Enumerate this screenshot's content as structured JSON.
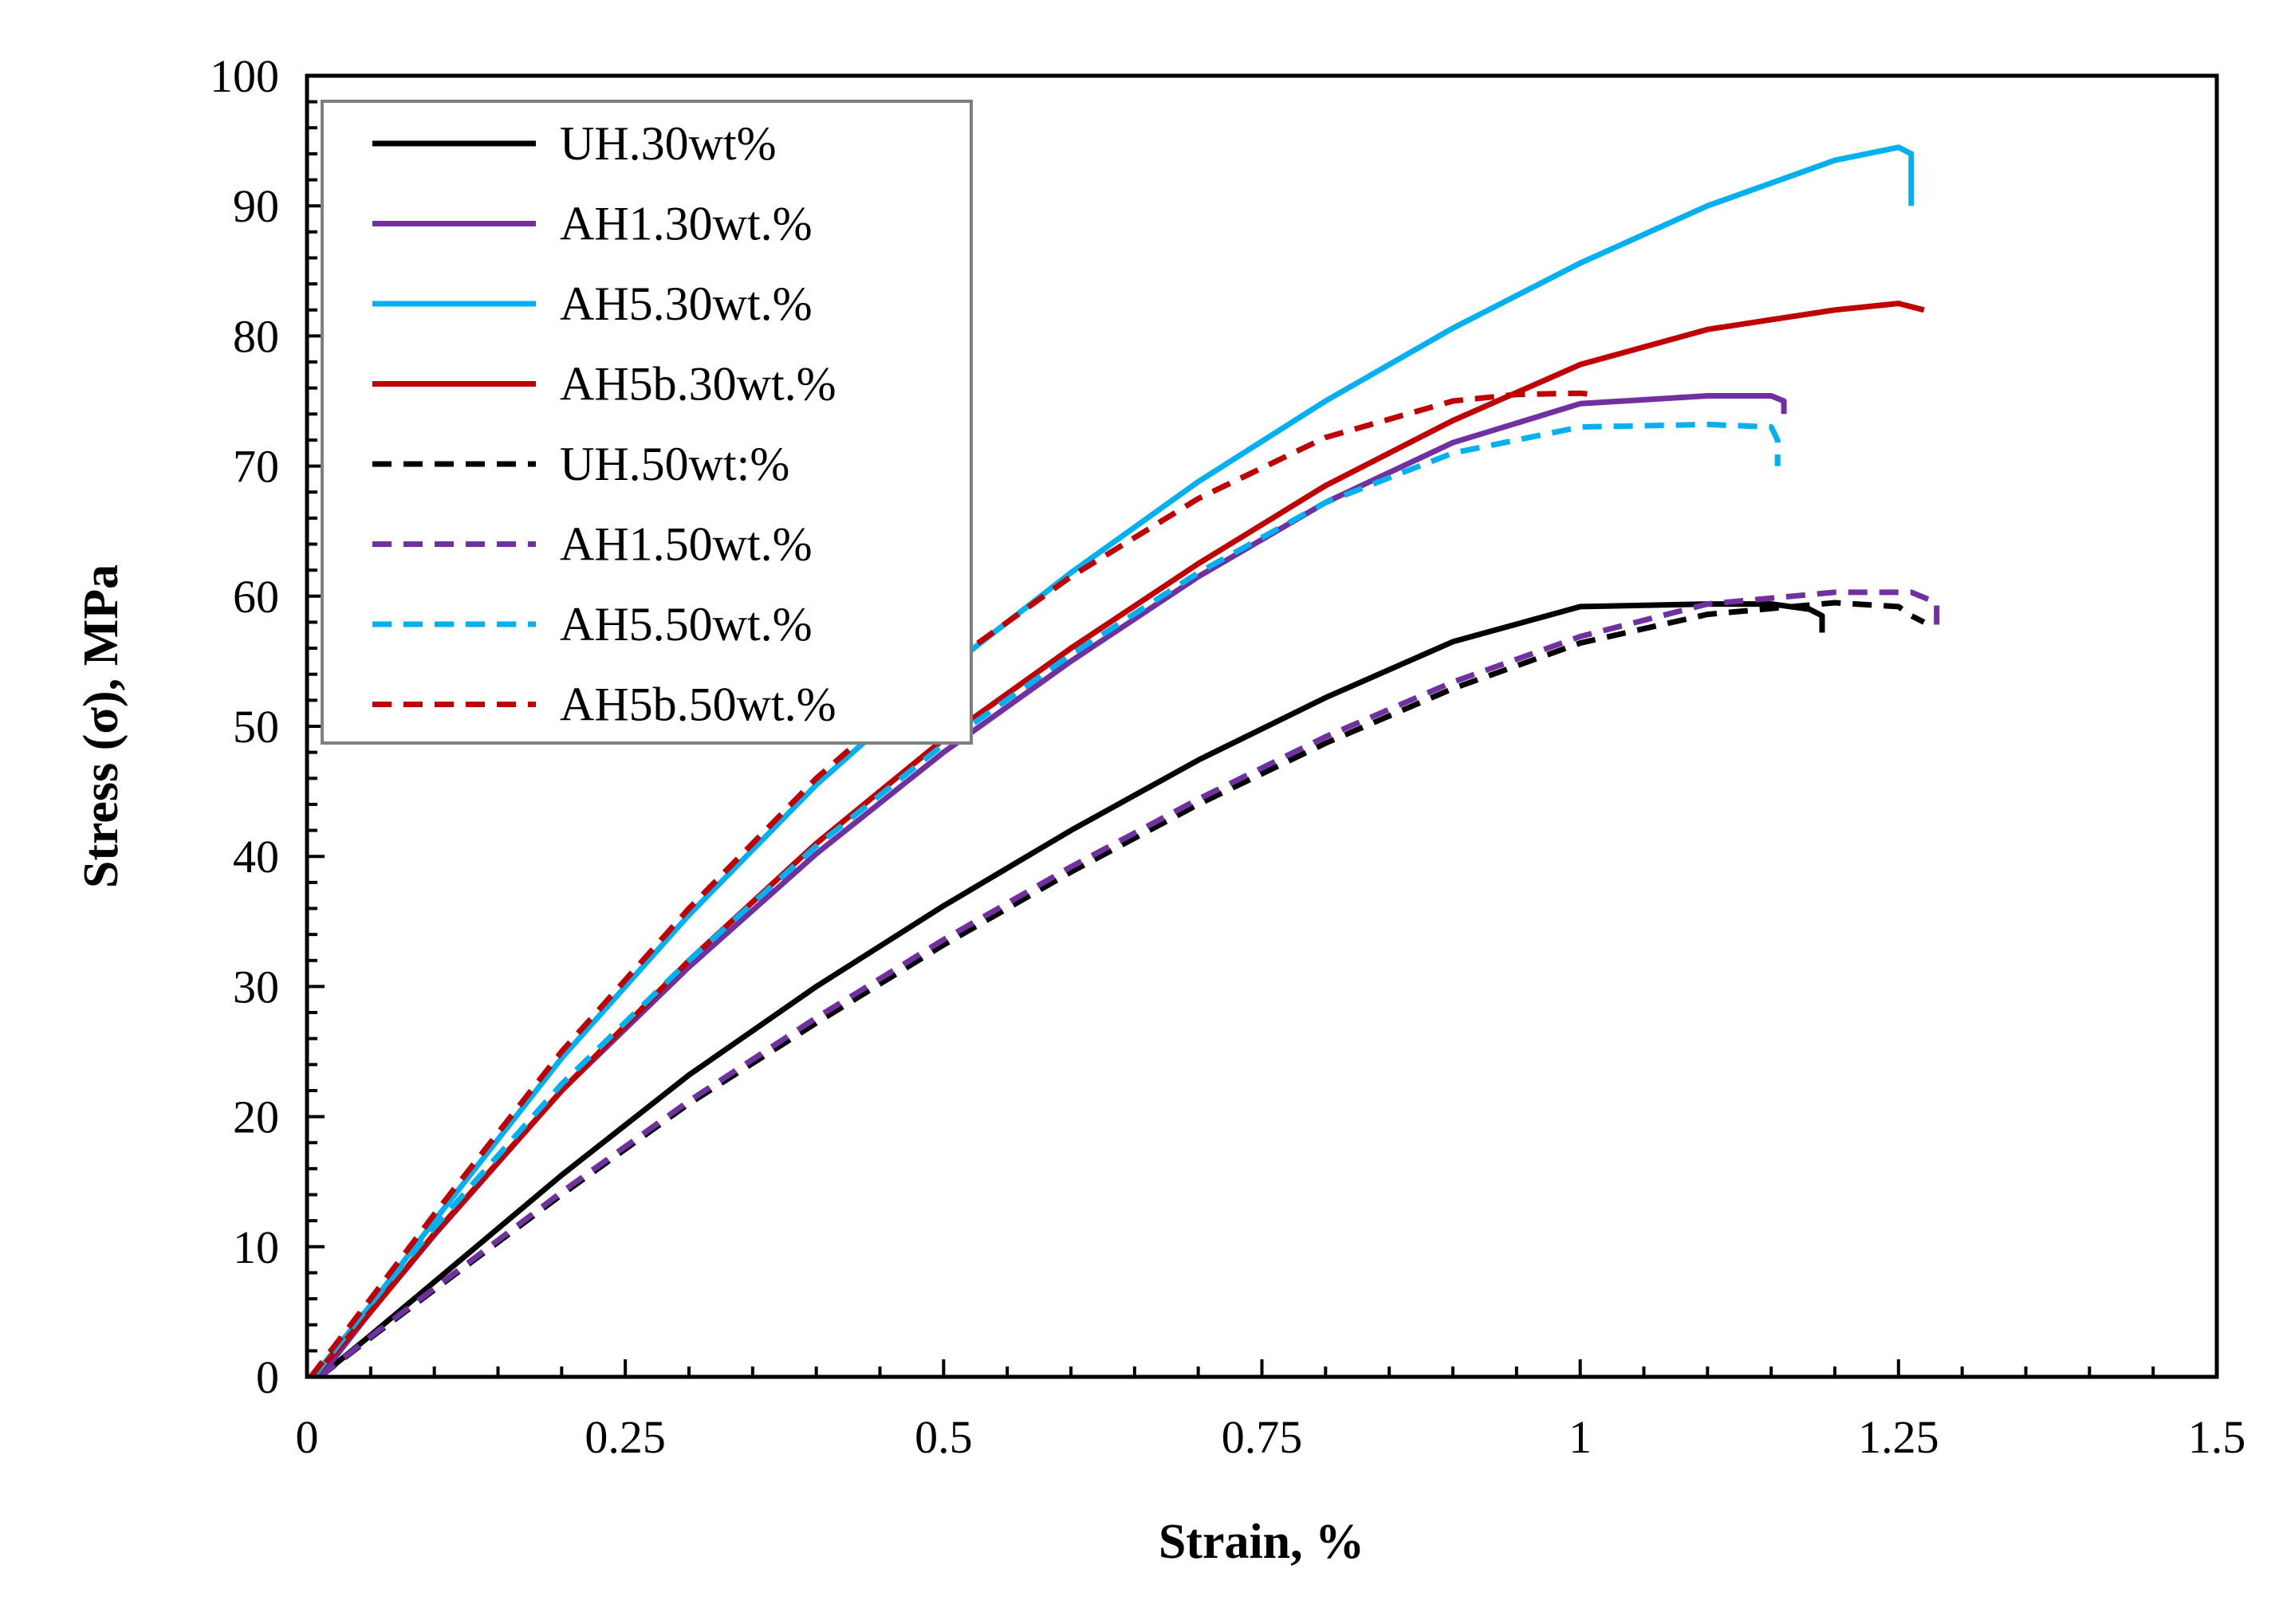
{
  "chart_data": {
    "type": "line",
    "title": "",
    "xlabel": "Strain, %",
    "ylabel": "Stress (σ), MPa",
    "xlim": [
      0,
      1.5
    ],
    "ylim": [
      0,
      100
    ],
    "xticks": [
      0,
      0.25,
      0.5,
      0.75,
      1,
      1.25,
      1.5
    ],
    "xtick_labels": [
      "0",
      "0.25",
      "0.5",
      "0.75",
      "1",
      "1.25",
      "1.5"
    ],
    "yticks": [
      0,
      10,
      20,
      30,
      40,
      50,
      60,
      70,
      80,
      90,
      100
    ],
    "ytick_labels": [
      "0",
      "10",
      "20",
      "30",
      "40",
      "50",
      "60",
      "70",
      "80",
      "90",
      "100"
    ],
    "grid": false,
    "legend_position": "top-left",
    "series": [
      {
        "name": "UH.30wt%",
        "color": "#000000",
        "dash": "solid",
        "x": [
          0.01,
          0.05,
          0.1,
          0.2,
          0.3,
          0.4,
          0.5,
          0.6,
          0.7,
          0.8,
          0.9,
          1.0,
          1.1,
          1.15,
          1.18,
          1.19,
          1.19
        ],
        "y": [
          0,
          3.2,
          7.3,
          15.5,
          23.2,
          30.0,
          36.2,
          42.0,
          47.4,
          52.2,
          56.5,
          59.2,
          59.4,
          59.4,
          59.0,
          58.5,
          57.2
        ]
      },
      {
        "name": "AH1.30wt.%",
        "color": "#7030A0",
        "dash": "solid",
        "x": [
          0.01,
          0.05,
          0.1,
          0.2,
          0.3,
          0.4,
          0.5,
          0.6,
          0.7,
          0.8,
          0.9,
          1.0,
          1.1,
          1.15,
          1.16,
          1.16
        ],
        "y": [
          0,
          5.0,
          10.9,
          22.0,
          31.5,
          40.2,
          48.0,
          55.0,
          61.5,
          67.2,
          71.8,
          74.8,
          75.4,
          75.4,
          75.0,
          74.0
        ]
      },
      {
        "name": "AH5.30wt.%",
        "color": "#00B0F0",
        "dash": "solid",
        "x": [
          0.005,
          0.05,
          0.1,
          0.2,
          0.3,
          0.4,
          0.5,
          0.6,
          0.7,
          0.8,
          0.9,
          1.0,
          1.1,
          1.2,
          1.25,
          1.26,
          1.26
        ],
        "y": [
          0,
          5.5,
          12.0,
          24.5,
          35.5,
          45.5,
          54.2,
          61.8,
          68.8,
          75.0,
          80.6,
          85.6,
          90.0,
          93.5,
          94.5,
          94.0,
          90.0
        ]
      },
      {
        "name": "AH5b.30wt.%",
        "color": "#C00000",
        "dash": "solid",
        "x": [
          0.005,
          0.05,
          0.1,
          0.2,
          0.3,
          0.4,
          0.5,
          0.6,
          0.7,
          0.8,
          0.9,
          1.0,
          1.1,
          1.2,
          1.25,
          1.27
        ],
        "y": [
          0,
          5.0,
          11.0,
          22.0,
          32.0,
          41.0,
          49.0,
          56.0,
          62.5,
          68.5,
          73.5,
          77.8,
          80.5,
          82.0,
          82.5,
          82.0
        ]
      },
      {
        "name": "UH.50wt:%",
        "color": "#000000",
        "dash": "dashed",
        "x": [
          0.01,
          0.05,
          0.1,
          0.2,
          0.3,
          0.4,
          0.5,
          0.6,
          0.7,
          0.8,
          0.9,
          1.0,
          1.1,
          1.2,
          1.25,
          1.26,
          1.27
        ],
        "y": [
          0,
          3.0,
          6.7,
          14.0,
          21.0,
          27.2,
          33.2,
          38.8,
          44.0,
          48.7,
          52.9,
          56.4,
          58.6,
          59.5,
          59.2,
          58.5,
          58.0
        ]
      },
      {
        "name": "AH1.50wt.%",
        "color": "#7030A0",
        "dash": "dashed",
        "x": [
          0.01,
          0.05,
          0.1,
          0.2,
          0.3,
          0.4,
          0.5,
          0.6,
          0.7,
          0.8,
          0.9,
          1.0,
          1.1,
          1.2,
          1.26,
          1.28,
          1.28
        ],
        "y": [
          0,
          3.1,
          6.8,
          14.2,
          21.2,
          27.6,
          33.6,
          39.2,
          44.4,
          49.2,
          53.4,
          56.9,
          59.4,
          60.3,
          60.3,
          59.5,
          57.5
        ]
      },
      {
        "name": "AH5.50wt.%",
        "color": "#00B0F0",
        "dash": "dashed",
        "x": [
          0.005,
          0.05,
          0.1,
          0.2,
          0.3,
          0.4,
          0.5,
          0.6,
          0.7,
          0.8,
          0.9,
          1.0,
          1.1,
          1.15,
          1.155,
          1.155
        ],
        "y": [
          0,
          5.6,
          11.5,
          22.5,
          32.0,
          40.8,
          48.6,
          55.5,
          61.8,
          67.2,
          71.0,
          73.0,
          73.2,
          73.0,
          72.0,
          70.0
        ]
      },
      {
        "name": "AH5b.50wt.%",
        "color": "#C00000",
        "dash": "dashed",
        "x": [
          0.003,
          0.05,
          0.1,
          0.2,
          0.3,
          0.4,
          0.5,
          0.6,
          0.7,
          0.8,
          0.9,
          0.95,
          1.0,
          1.01
        ],
        "y": [
          0,
          6.0,
          12.5,
          25.0,
          36.0,
          46.0,
          54.5,
          61.5,
          67.5,
          72.2,
          75.0,
          75.5,
          75.6,
          75.5
        ]
      }
    ]
  }
}
